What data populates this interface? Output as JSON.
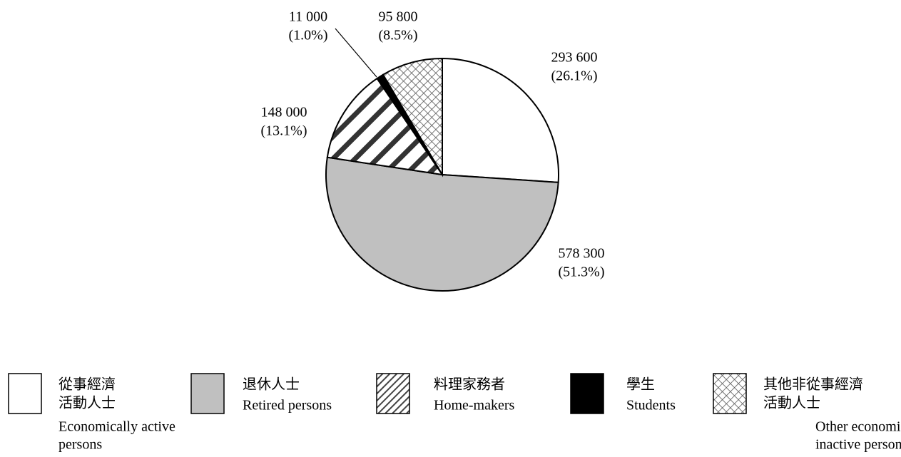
{
  "chart_data": {
    "type": "pie",
    "categories": [
      {
        "zh": [
          "從事經濟",
          "活動人士"
        ],
        "en": [
          "Economically active",
          "persons"
        ]
      },
      {
        "zh": [
          "退休人士"
        ],
        "en": [
          "Retired persons"
        ]
      },
      {
        "zh": [
          "料理家務者"
        ],
        "en": [
          "Home-makers"
        ]
      },
      {
        "zh": [
          "學生"
        ],
        "en": [
          "Students"
        ]
      },
      {
        "zh": [
          "其他非從事經濟",
          "活動人士"
        ],
        "en": [
          "Other economically",
          "inactive persons"
        ]
      }
    ],
    "values": [
      293600,
      578300,
      148000,
      11000,
      95800
    ],
    "value_labels": [
      "293 600",
      "578 300",
      "148 000",
      "11 000",
      "95 800"
    ],
    "percentages": [
      26.1,
      51.3,
      13.1,
      1.0,
      8.5
    ],
    "percentage_labels": [
      "(26.1%)",
      "(51.3%)",
      "(13.1%)",
      "(1.0%)",
      "(8.5%)"
    ],
    "fills": [
      "white",
      "#c0c0c0",
      "diagonal",
      "black",
      "crosshatch"
    ]
  }
}
